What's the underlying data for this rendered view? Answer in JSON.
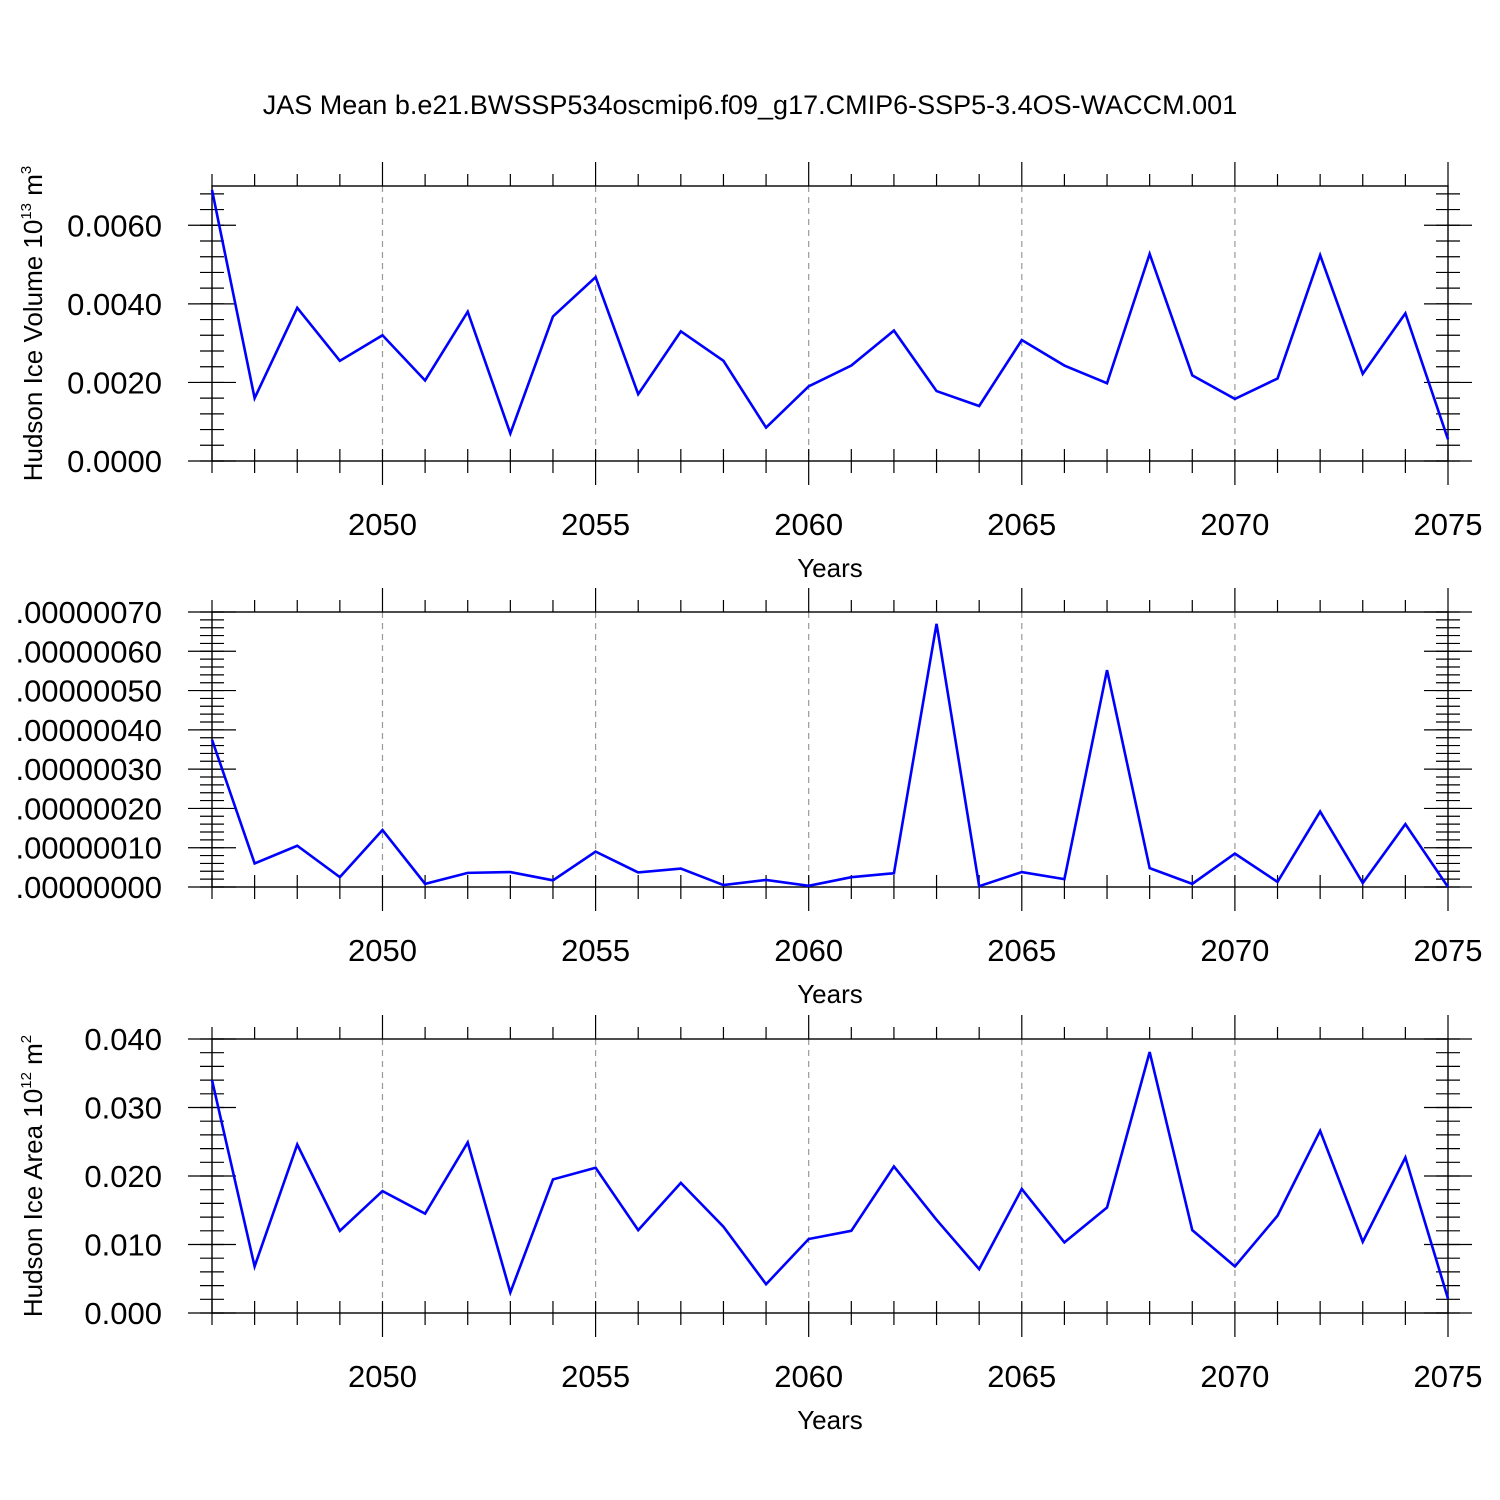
{
  "title": "JAS Mean b.e21.BWSSP534oscmip6.f09_g17.CMIP6-SSP5-3.4OS-WACCM.001",
  "colors": {
    "series": "#0000ff",
    "grid": "#9a9a9a",
    "axis": "#000000"
  },
  "chart_data": [
    {
      "type": "line",
      "xlabel": "Years",
      "ylabel": {
        "text": "Hudson Ice Volume 10",
        "sup": "13",
        "unit": " m",
        "unit_sup": "3"
      },
      "xlim": [
        2046,
        2075
      ],
      "ylim": [
        0.0,
        0.007
      ],
      "xticks": [
        2050,
        2055,
        2060,
        2065,
        2070,
        2075
      ],
      "xtick_labels": [
        "2050",
        "2055",
        "2060",
        "2065",
        "2070",
        "2075"
      ],
      "yticks": [
        0.0,
        0.002,
        0.004,
        0.006
      ],
      "ytick_labels": [
        "0.0000",
        "0.0020",
        "0.0040",
        "0.0060"
      ],
      "grid": "vertical dashed at major x ticks",
      "x": [
        2046,
        2047,
        2048,
        2049,
        2050,
        2051,
        2052,
        2053,
        2054,
        2055,
        2056,
        2057,
        2058,
        2059,
        2060,
        2061,
        2062,
        2063,
        2064,
        2065,
        2066,
        2067,
        2068,
        2069,
        2070,
        2071,
        2072,
        2073,
        2074,
        2075
      ],
      "series": [
        {
          "values": [
            0.0069,
            0.0016,
            0.0039,
            0.00255,
            0.0032,
            0.00205,
            0.0038,
            0.0007,
            0.00368,
            0.00468,
            0.0017,
            0.0033,
            0.00255,
            0.00085,
            0.0019,
            0.00243,
            0.00332,
            0.00178,
            0.0014,
            0.00308,
            0.00243,
            0.00198,
            0.00527,
            0.00218,
            0.00158,
            0.0021,
            0.00524,
            0.00222,
            0.00376,
            0.00055
          ]
        }
      ]
    },
    {
      "type": "line",
      "xlabel": "Years",
      "ylabel": null,
      "xlim": [
        2046,
        2075
      ],
      "ylim": [
        0.0,
        7e-07
      ],
      "xticks": [
        2050,
        2055,
        2060,
        2065,
        2070,
        2075
      ],
      "xtick_labels": [
        "2050",
        "2055",
        "2060",
        "2065",
        "2070",
        "2075"
      ],
      "yticks": [
        0.0,
        1e-07,
        2e-07,
        3e-07,
        4e-07,
        5e-07,
        6e-07,
        7e-07
      ],
      "ytick_labels": [
        ".00000000",
        ".00000010",
        ".00000020",
        ".00000030",
        ".00000040",
        ".00000050",
        ".00000060",
        ".00000070"
      ],
      "grid": "vertical dashed at major x ticks",
      "x": [
        2046,
        2047,
        2048,
        2049,
        2050,
        2051,
        2052,
        2053,
        2054,
        2055,
        2056,
        2057,
        2058,
        2059,
        2060,
        2061,
        2062,
        2063,
        2064,
        2065,
        2066,
        2067,
        2068,
        2069,
        2070,
        2071,
        2072,
        2073,
        2074,
        2075
      ],
      "series": [
        {
          "values": [
            3.75e-07,
            6e-08,
            1.05e-07,
            2.5e-08,
            1.45e-07,
            8e-09,
            3.6e-08,
            3.8e-08,
            1.7e-08,
            9e-08,
            3.7e-08,
            4.7e-08,
            5e-09,
            1.8e-08,
            3e-09,
            2.5e-08,
            3.5e-08,
            6.7e-07,
            2e-09,
            3.8e-08,
            2e-08,
            5.52e-07,
            4.8e-08,
            8e-09,
            8.5e-08,
            1.3e-08,
            1.92e-07,
            1e-08,
            1.6e-07,
            0.0
          ]
        }
      ]
    },
    {
      "type": "line",
      "xlabel": "Years",
      "ylabel": {
        "text": "Hudson Ice Area 10",
        "sup": "12",
        "unit": " m",
        "unit_sup": "2"
      },
      "xlim": [
        2046,
        2075
      ],
      "ylim": [
        0.0,
        0.04
      ],
      "xticks": [
        2050,
        2055,
        2060,
        2065,
        2070,
        2075
      ],
      "xtick_labels": [
        "2050",
        "2055",
        "2060",
        "2065",
        "2070",
        "2075"
      ],
      "yticks": [
        0.0,
        0.01,
        0.02,
        0.03,
        0.04
      ],
      "ytick_labels": [
        "0.000",
        "0.010",
        "0.020",
        "0.030",
        "0.040"
      ],
      "grid": "vertical dashed at major x ticks",
      "x": [
        2046,
        2047,
        2048,
        2049,
        2050,
        2051,
        2052,
        2053,
        2054,
        2055,
        2056,
        2057,
        2058,
        2059,
        2060,
        2061,
        2062,
        2063,
        2064,
        2065,
        2066,
        2067,
        2068,
        2069,
        2070,
        2071,
        2072,
        2073,
        2074,
        2075
      ],
      "series": [
        {
          "values": [
            0.034,
            0.0068,
            0.0246,
            0.012,
            0.0178,
            0.0145,
            0.0249,
            0.003,
            0.0195,
            0.0212,
            0.0121,
            0.019,
            0.0126,
            0.0042,
            0.0108,
            0.012,
            0.0214,
            0.0136,
            0.0064,
            0.0181,
            0.0103,
            0.0154,
            0.0381,
            0.0121,
            0.0068,
            0.0142,
            0.0266,
            0.0104,
            0.0227,
            0.0021
          ]
        }
      ]
    }
  ]
}
